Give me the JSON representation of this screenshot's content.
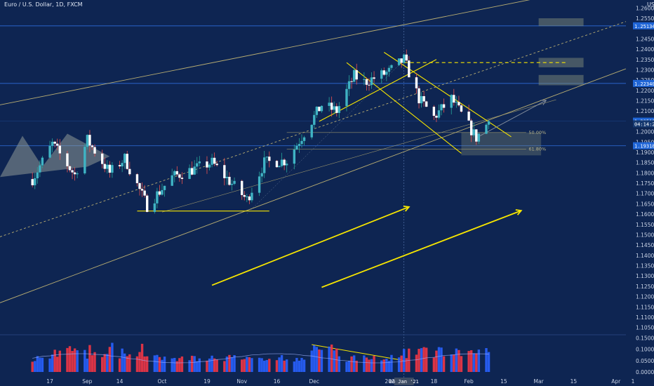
{
  "header": {
    "title": "Euro / U.S. Dollar, 1D, FXCM"
  },
  "currency_label": "USD",
  "colors": {
    "background": "#0e2552",
    "up": "#26a69a",
    "down": "#ef5350",
    "vol_up": "#2962ff",
    "vol_down": "#f23645",
    "channel": "#b8ad72",
    "yellow": "#f7e600",
    "level_line": "#2a63c8",
    "tag": "#1f65d6"
  },
  "price_axis": {
    "ticks": [
      "1.26000",
      "1.25500",
      "1.24500",
      "1.24000",
      "1.23500",
      "1.23000",
      "1.22500",
      "1.22000",
      "1.21500",
      "1.21000",
      "1.20500",
      "1.20000",
      "1.19500",
      "1.19000",
      "1.18500",
      "1.18000",
      "1.17500",
      "1.17000",
      "1.16500",
      "1.16000",
      "1.15500",
      "1.15000",
      "1.14500",
      "1.14000",
      "1.13500",
      "1.13000",
      "1.12500",
      "1.12000",
      "1.11500",
      "1.11000",
      "1.10500"
    ],
    "tags": [
      {
        "label": "1.25134",
        "price": 1.25134
      },
      {
        "label": "1.22340",
        "price": 1.2234
      },
      {
        "label": "1.20510",
        "price": 1.2051
      },
      {
        "label": "04:14:28",
        "price": 1.2038
      },
      {
        "label": "1.19318",
        "price": 1.19318
      }
    ]
  },
  "volume_axis": {
    "ticks": [
      "0.15000",
      "0.10000",
      "0.05000",
      "0.00000"
    ]
  },
  "time_axis": {
    "ticks": [
      "17",
      "Sep",
      "14",
      "Oct",
      "19",
      "Nov",
      "16",
      "Dec",
      "2021",
      "18",
      "Feb",
      "15",
      "Mar",
      "15",
      "Apr",
      "1"
    ],
    "crosshair_label": "06 Jan '21"
  },
  "fib_labels": [
    "50.00%",
    "61.80%"
  ],
  "chart_data": {
    "type": "candlestick",
    "title": "Euro / U.S. Dollar, 1D, FXCM",
    "series": [
      {
        "name": "EURUSD",
        "waypoints": [
          [
            "2020-08-10",
            1.177
          ],
          [
            "2020-08-18",
            1.194
          ],
          [
            "2020-08-27",
            1.179
          ],
          [
            "2020-09-01",
            1.196
          ],
          [
            "2020-09-10",
            1.18
          ],
          [
            "2020-09-16",
            1.187
          ],
          [
            "2020-09-25",
            1.164
          ],
          [
            "2020-10-05",
            1.178
          ],
          [
            "2020-10-21",
            1.185
          ],
          [
            "2020-11-04",
            1.167
          ],
          [
            "2020-11-11",
            1.185
          ],
          [
            "2020-11-20",
            1.186
          ],
          [
            "2020-12-04",
            1.213
          ],
          [
            "2020-12-10",
            1.21
          ],
          [
            "2020-12-17",
            1.227
          ],
          [
            "2020-12-21",
            1.224
          ],
          [
            "2020-12-31",
            1.229
          ],
          [
            "2021-01-06",
            1.235
          ],
          [
            "2021-01-12",
            1.216
          ],
          [
            "2021-01-18",
            1.207
          ],
          [
            "2021-01-25",
            1.216
          ],
          [
            "2021-02-04",
            1.197
          ],
          [
            "2021-02-09",
            1.2051
          ]
        ]
      }
    ],
    "volume": {
      "name": "Volume",
      "note": "daily tick volume, read from the lower pane; heights in data units"
    },
    "y_axis": {
      "min": 1.1025,
      "max": 1.2625,
      "scale": "linear"
    },
    "levels": [
      1.25134,
      1.2234,
      1.2051,
      1.19318
    ],
    "grid": false,
    "legend": "none"
  }
}
